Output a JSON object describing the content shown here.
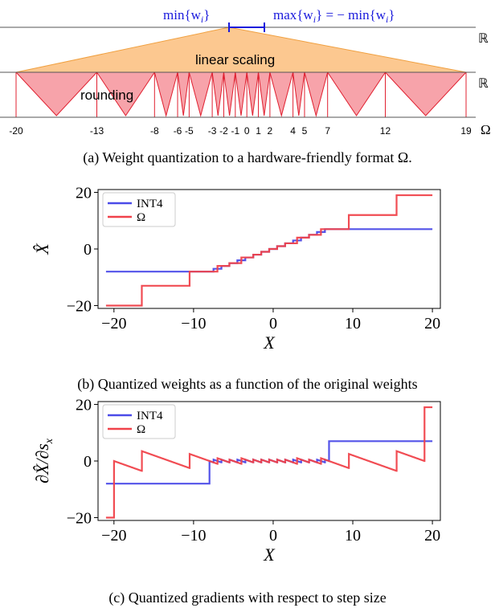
{
  "diagram": {
    "min_label": "min{w",
    "min_sub": "i",
    "min_close": "}",
    "max_label": "max{w",
    "max_sub": "i",
    "max_mid": "} = − min{w",
    "max_sub2": "i",
    "max_close": "}",
    "real_line_label_1": "ℝ",
    "real_line_label_2": "ℝ",
    "omega_label": "Ω",
    "linear_scaling_label": "linear scaling",
    "rounding_label": "rounding",
    "omega_values": [
      -20,
      -13,
      -8,
      -6,
      -5,
      -3,
      -2,
      -1,
      0,
      1,
      2,
      4,
      5,
      7,
      12,
      19
    ],
    "omega_tick_labels": [
      "-20",
      "-13",
      "-8",
      "-6",
      "-5",
      "-3",
      "-2",
      "-1",
      "0",
      "1",
      "2",
      "4",
      "5",
      "7",
      "12",
      "19"
    ],
    "colors": {
      "orange_fill": "#fcc890",
      "orange_edge": "#f0a040",
      "pink_fill": "#f7a3aa",
      "pink_edge": "#e02030",
      "blue_marker": "#1a1adc"
    }
  },
  "captions": {
    "a": "(a) Weight quantization to a hardware-friendly format Ω.",
    "b": "(b) Quantized weights as a function of the original weights",
    "c": "(c) Quantized gradients with respect to step size"
  },
  "chart_data": [
    {
      "type": "line",
      "xlabel": "X",
      "ylabel": "X̂",
      "xlim": [
        -22,
        21
      ],
      "ylim": [
        -21,
        21
      ],
      "xticks": [
        -20,
        -10,
        0,
        10,
        20
      ],
      "xtick_labels": [
        "−20",
        "−10",
        "0",
        "10",
        "20"
      ],
      "yticks": [
        -20,
        0,
        20
      ],
      "ytick_labels": [
        "−20",
        "0",
        "20"
      ],
      "legend_position": "top-left",
      "legend": [
        "INT4",
        "Ω"
      ],
      "series": [
        {
          "name": "INT4",
          "color": "#4a4ae8",
          "levels": [
            -8,
            -7,
            -6,
            -5,
            -4,
            -3,
            -2,
            -1,
            0,
            1,
            2,
            3,
            4,
            5,
            6,
            7
          ],
          "x_range": [
            -21,
            20
          ]
        },
        {
          "name": "Ω",
          "color": "#f0424a",
          "levels": [
            -20,
            -13,
            -8,
            -6,
            -5,
            -3,
            -2,
            -1,
            0,
            1,
            2,
            4,
            5,
            7,
            12,
            19
          ],
          "x_range": [
            -21,
            20
          ]
        }
      ]
    },
    {
      "type": "line",
      "xlabel": "X",
      "ylabel": "∂X̂/∂s",
      "ylabel_sub": "x",
      "xlim": [
        -22,
        21
      ],
      "ylim": [
        -21,
        21
      ],
      "xticks": [
        -20,
        -10,
        0,
        10,
        20
      ],
      "xtick_labels": [
        "−20",
        "−10",
        "0",
        "10",
        "20"
      ],
      "yticks": [
        -20,
        0,
        20
      ],
      "ytick_labels": [
        "−20",
        "0",
        "20"
      ],
      "legend_position": "top-left",
      "legend": [
        "INT4",
        "Ω"
      ],
      "series": [
        {
          "name": "INT4",
          "color": "#4a4ae8",
          "levels": [
            -8,
            -7,
            -6,
            -5,
            -4,
            -3,
            -2,
            -1,
            0,
            1,
            2,
            3,
            4,
            5,
            6,
            7
          ],
          "x_range": [
            -21,
            20
          ]
        },
        {
          "name": "Ω",
          "color": "#f0424a",
          "levels": [
            -20,
            -13,
            -8,
            -6,
            -5,
            -3,
            -2,
            -1,
            0,
            1,
            2,
            4,
            5,
            7,
            12,
            19
          ],
          "x_range": [
            -21,
            20
          ]
        }
      ]
    }
  ]
}
